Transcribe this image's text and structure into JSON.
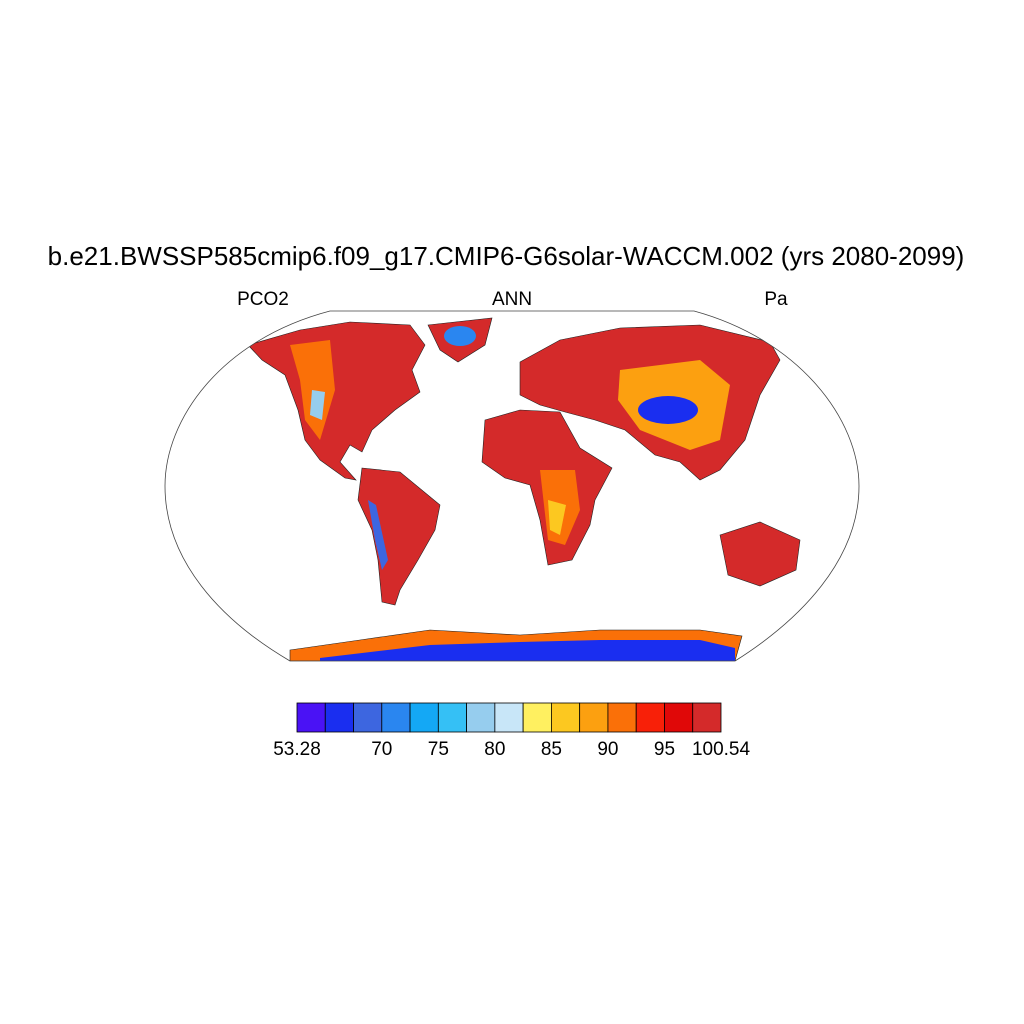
{
  "title": "b.e21.BWSSP585cmip6.f09_g17.CMIP6-G6solar-WACCM.002 (yrs 2080-2099)",
  "left_label": "PCO2",
  "center_label": "ANN",
  "right_label": "Pa",
  "colorbar": {
    "colors": [
      "#4a12f5",
      "#1a2ef0",
      "#3d66e0",
      "#2a86f0",
      "#14a8f5",
      "#35c0f5",
      "#96cdee",
      "#c8e6f8",
      "#fff060",
      "#fcc820",
      "#fca010",
      "#fa7008",
      "#f82008",
      "#e00808",
      "#d42a2a"
    ],
    "labels": [
      "53.28",
      null,
      null,
      "70",
      null,
      "75",
      null,
      "80",
      null,
      "85",
      null,
      "90",
      null,
      "95",
      null,
      "100.54"
    ]
  }
}
